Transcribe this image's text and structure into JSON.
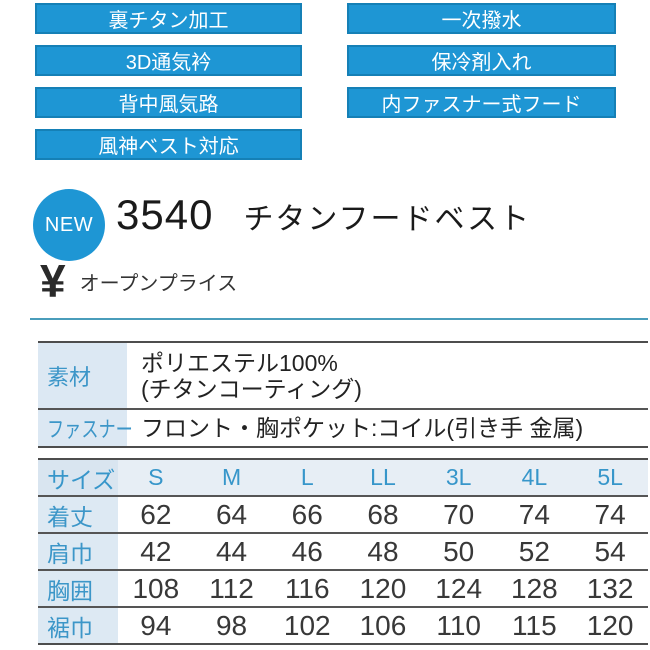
{
  "features": {
    "left": [
      "裏チタン加工",
      "3D通気衿",
      "背中風気路",
      "風神ベスト対応"
    ],
    "right": [
      "一次撥水",
      "保冷剤入れ",
      "内ファスナー式フード"
    ]
  },
  "product": {
    "new_badge": "NEW",
    "code": "3540",
    "name": "チタンフードベスト",
    "currency_symbol": "¥",
    "price": "オープンプライス"
  },
  "spec": {
    "rows": [
      {
        "label": "素材",
        "lines": [
          "ポリエステル100%",
          "(チタンコーティング)"
        ]
      },
      {
        "label": "ファスナー",
        "lines": [
          "フロント・胸ポケット:コイル(引き手 金属)"
        ]
      }
    ]
  },
  "size_table": {
    "header_label": "サイズ",
    "sizes": [
      "S",
      "M",
      "L",
      "LL",
      "3L",
      "4L",
      "5L"
    ],
    "rows": [
      {
        "label": "着丈",
        "values": [
          62,
          64,
          66,
          68,
          70,
          74,
          74
        ]
      },
      {
        "label": "肩巾",
        "values": [
          42,
          44,
          46,
          48,
          50,
          52,
          54
        ]
      },
      {
        "label": "胸囲",
        "values": [
          108,
          112,
          116,
          120,
          124,
          128,
          132
        ]
      },
      {
        "label": "裾巾",
        "values": [
          94,
          98,
          102,
          106,
          110,
          115,
          120
        ]
      }
    ]
  },
  "colors": {
    "badge_blue": "#1E96D4",
    "badge_border": "#1580B6",
    "label_cell_bg": "#DCE8F3",
    "header_row_bg": "#E7EEF5",
    "label_text_blue": "#3C96C8",
    "divider_blue": "#4A9DBB",
    "rule_gray": "#4d4d4d"
  }
}
